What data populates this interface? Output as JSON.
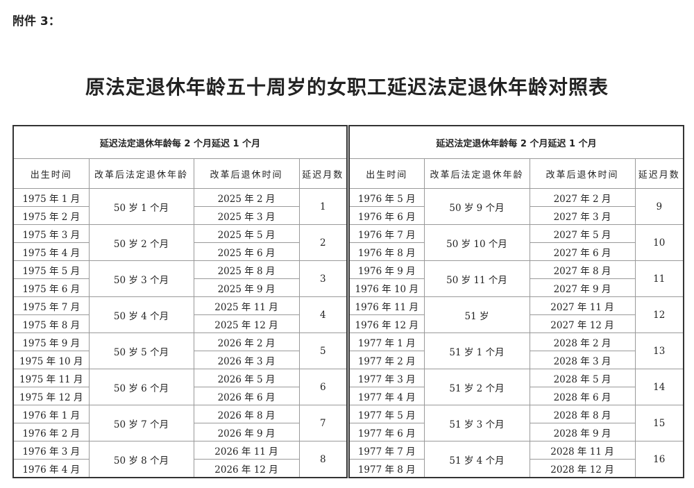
{
  "attachment_label": "附件 3：",
  "title": "原法定退休年龄五十周岁的女职工延迟法定退休年龄对照表",
  "tables": [
    {
      "caption": "延迟法定退休年龄每 2 个月延迟 1 个月",
      "headers": [
        "出生时间",
        "改革后法定退休年龄",
        "改革后退休时间",
        "延迟月数"
      ],
      "groups": [
        {
          "births": [
            "1975 年 1 月",
            "1975 年 2 月"
          ],
          "age": "50 岁 1 个月",
          "retire": [
            "2025 年 2 月",
            "2025 年 3 月"
          ],
          "delay": "1"
        },
        {
          "births": [
            "1975 年 3 月",
            "1975 年 4 月"
          ],
          "age": "50 岁 2 个月",
          "retire": [
            "2025 年 5 月",
            "2025 年 6 月"
          ],
          "delay": "2"
        },
        {
          "births": [
            "1975 年 5 月",
            "1975 年 6 月"
          ],
          "age": "50 岁 3 个月",
          "retire": [
            "2025 年 8 月",
            "2025 年 9 月"
          ],
          "delay": "3"
        },
        {
          "births": [
            "1975 年 7 月",
            "1975 年 8 月"
          ],
          "age": "50 岁 4 个月",
          "retire": [
            "2025 年 11 月",
            "2025 年 12 月"
          ],
          "delay": "4"
        },
        {
          "births": [
            "1975 年 9 月",
            "1975 年 10 月"
          ],
          "age": "50 岁 5 个月",
          "retire": [
            "2026 年 2 月",
            "2026 年 3 月"
          ],
          "delay": "5"
        },
        {
          "births": [
            "1975 年 11 月",
            "1975 年 12 月"
          ],
          "age": "50 岁 6 个月",
          "retire": [
            "2026 年 5 月",
            "2026 年 6 月"
          ],
          "delay": "6"
        },
        {
          "births": [
            "1976 年 1 月",
            "1976 年 2 月"
          ],
          "age": "50 岁 7 个月",
          "retire": [
            "2026 年 8 月",
            "2026 年 9 月"
          ],
          "delay": "7"
        },
        {
          "births": [
            "1976 年 3 月",
            "1976 年 4 月"
          ],
          "age": "50 岁 8 个月",
          "retire": [
            "2026 年 11 月",
            "2026 年 12 月"
          ],
          "delay": "8"
        }
      ]
    },
    {
      "caption": "延迟法定退休年龄每 2 个月延迟 1 个月",
      "headers": [
        "出生时间",
        "改革后法定退休年龄",
        "改革后退休时间",
        "延迟月数"
      ],
      "groups": [
        {
          "births": [
            "1976 年 5 月",
            "1976 年 6 月"
          ],
          "age": "50 岁 9 个月",
          "retire": [
            "2027 年 2 月",
            "2027 年 3 月"
          ],
          "delay": "9"
        },
        {
          "births": [
            "1976 年 7 月",
            "1976 年 8 月"
          ],
          "age": "50 岁 10 个月",
          "retire": [
            "2027 年 5 月",
            "2027 年 6 月"
          ],
          "delay": "10"
        },
        {
          "births": [
            "1976 年 9 月",
            "1976 年 10 月"
          ],
          "age": "50 岁 11 个月",
          "retire": [
            "2027 年 8 月",
            "2027 年 9 月"
          ],
          "delay": "11"
        },
        {
          "births": [
            "1976 年 11 月",
            "1976 年 12 月"
          ],
          "age": "51 岁",
          "retire": [
            "2027 年 11 月",
            "2027 年 12 月"
          ],
          "delay": "12"
        },
        {
          "births": [
            "1977 年 1 月",
            "1977 年 2 月"
          ],
          "age": "51 岁 1 个月",
          "retire": [
            "2028 年 2 月",
            "2028 年 3 月"
          ],
          "delay": "13"
        },
        {
          "births": [
            "1977 年 3 月",
            "1977 年 4 月"
          ],
          "age": "51 岁 2 个月",
          "retire": [
            "2028 年 5 月",
            "2028 年 6 月"
          ],
          "delay": "14"
        },
        {
          "births": [
            "1977 年 5 月",
            "1977 年 6 月"
          ],
          "age": "51 岁 3 个月",
          "retire": [
            "2028 年 8 月",
            "2028 年 9 月"
          ],
          "delay": "15"
        },
        {
          "births": [
            "1977 年 7 月",
            "1977 年 8 月"
          ],
          "age": "51 岁 4 个月",
          "retire": [
            "2028 年 11 月",
            "2028 年 12 月"
          ],
          "delay": "16"
        }
      ]
    }
  ]
}
